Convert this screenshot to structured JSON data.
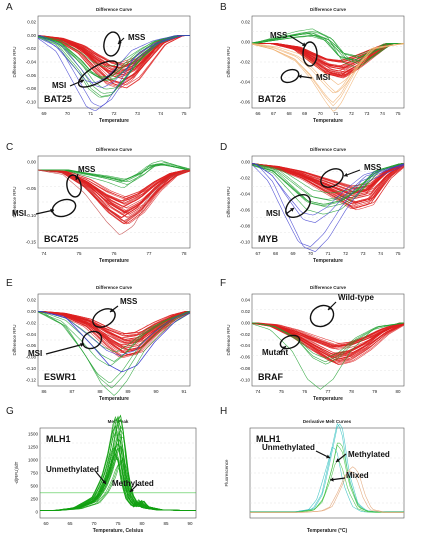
{
  "figure": {
    "panels": [
      {
        "letter": "A",
        "plot_title": "Difference Curve",
        "ylabel": "Difference RFU",
        "xlabel": "Temperature",
        "xticks": [
          "69",
          "70",
          "71",
          "72",
          "73",
          "74",
          "75"
        ],
        "yticks": [
          "0.02",
          "0.00",
          "-0.02",
          "-0.04",
          "-0.06",
          "-0.08",
          "-0.10"
        ],
        "annotations": [
          {
            "text": "MSS"
          },
          {
            "text": "MSI"
          }
        ],
        "marker": "BAT25"
      },
      {
        "letter": "B",
        "plot_title": "Difference Curve",
        "ylabel": "Difference RFU",
        "xlabel": "Temperature",
        "xticks": [
          "66",
          "67",
          "68",
          "69",
          "70",
          "71",
          "72",
          "73",
          "74",
          "75"
        ],
        "yticks": [
          "0.02",
          "0.00",
          "-0.02",
          "-0.04",
          "-0.06"
        ],
        "annotations": [
          {
            "text": "MSS"
          },
          {
            "text": "MSI"
          }
        ],
        "marker": "BAT26"
      },
      {
        "letter": "C",
        "plot_title": "Difference Curve",
        "ylabel": "Difference RFU",
        "xlabel": "Temperature",
        "xticks": [
          "74",
          "75",
          "76",
          "77",
          "78"
        ],
        "yticks": [
          "0.00",
          "-0.05",
          "-0.10",
          "-0.15"
        ],
        "annotations": [
          {
            "text": "MSS"
          },
          {
            "text": "MSI"
          }
        ],
        "marker": "BCAT25"
      },
      {
        "letter": "D",
        "plot_title": "Difference Curve",
        "ylabel": "Difference RFU",
        "xlabel": "Temperature",
        "xticks": [
          "67",
          "68",
          "69",
          "70",
          "71",
          "72",
          "73",
          "74",
          "75"
        ],
        "yticks": [
          "0.00",
          "-0.02",
          "-0.04",
          "-0.06",
          "-0.08",
          "-0.10"
        ],
        "annotations": [
          {
            "text": "MSS"
          },
          {
            "text": "MSI"
          }
        ],
        "marker": "MYB"
      },
      {
        "letter": "E",
        "plot_title": "Difference Curve",
        "ylabel": "Difference RFU",
        "xlabel": "Temperature",
        "xticks": [
          "86",
          "87",
          "88",
          "89",
          "90",
          "91"
        ],
        "yticks": [
          "0.02",
          "0.00",
          "-0.02",
          "-0.04",
          "-0.06",
          "-0.08",
          "-0.10",
          "-0.12"
        ],
        "annotations": [
          {
            "text": "MSS"
          },
          {
            "text": "MSI"
          }
        ],
        "marker": "ESWR1"
      },
      {
        "letter": "F",
        "plot_title": "Difference Curve",
        "ylabel": "Difference RFU",
        "xlabel": "Temperature",
        "xticks": [
          "74",
          "75",
          "76",
          "77",
          "78",
          "79",
          "80"
        ],
        "yticks": [
          "0.04",
          "0.02",
          "0.00",
          "-0.02",
          "-0.04",
          "-0.06",
          "-0.08",
          "-0.10"
        ],
        "annotations": [
          {
            "text": "Wild-type"
          },
          {
            "text": "Mutant"
          }
        ],
        "marker": "BRAF"
      },
      {
        "letter": "G",
        "plot_title": "Melt Peak",
        "ylabel": "-d(RFU)/dT",
        "xlabel": "Temperature, Celsius",
        "xticks": [
          "60",
          "65",
          "70",
          "75",
          "80",
          "85",
          "90"
        ],
        "yticks": [
          "1500",
          "1250",
          "1000",
          "750",
          "500",
          "250",
          "0"
        ],
        "annotations": [
          {
            "text": "Unmethylated"
          },
          {
            "text": "Methylated"
          }
        ],
        "marker": "MLH1"
      },
      {
        "letter": "H",
        "plot_title": "Derivative Melt Curves",
        "ylabel": "Fluorescence",
        "xlabel": "Temperature (°C)",
        "xticks": [],
        "yticks": [],
        "annotations": [
          {
            "text": "Unmethylated"
          },
          {
            "text": "Methylated"
          },
          {
            "text": "Mixed"
          }
        ],
        "marker": "MLH1"
      }
    ]
  },
  "chart_data": [
    {
      "panel": "A",
      "type": "line",
      "title": "Difference Curve",
      "xlabel": "Temperature",
      "ylabel": "Difference RFU",
      "xlim": [
        68.5,
        75.5
      ],
      "ylim": [
        -0.11,
        0.03
      ],
      "series": [
        {
          "color": "#dd2020",
          "count": 40,
          "x": [
            68.5,
            69.5,
            70.5,
            71.2,
            71.8,
            72.4,
            73.0,
            73.6,
            74.2,
            75.0
          ],
          "y": [
            0.0,
            -0.005,
            -0.02,
            -0.04,
            -0.055,
            -0.06,
            -0.05,
            -0.03,
            -0.01,
            0.0
          ]
        },
        {
          "color": "#20a030",
          "count": 10,
          "x": [
            68.5,
            69.5,
            70.5,
            71.0,
            71.5,
            72.0,
            72.6,
            73.2,
            74.0,
            75.0
          ],
          "y": [
            0.0,
            -0.01,
            -0.04,
            -0.06,
            -0.07,
            -0.068,
            -0.05,
            -0.03,
            -0.01,
            0.0
          ]
        },
        {
          "color": "#3c3cd0",
          "count": 4,
          "x": [
            68.5,
            69.5,
            70.3,
            70.9,
            71.3,
            71.8,
            72.4,
            73.0,
            74.0,
            75.0
          ],
          "y": [
            0.0,
            -0.02,
            -0.06,
            -0.09,
            -0.095,
            -0.085,
            -0.06,
            -0.03,
            -0.01,
            0.0
          ]
        }
      ]
    },
    {
      "panel": "B",
      "type": "line",
      "title": "Difference Curve",
      "xlabel": "Temperature",
      "ylabel": "Difference RFU",
      "xlim": [
        65.5,
        75.5
      ],
      "ylim": [
        -0.07,
        0.03
      ],
      "series": [
        {
          "color": "#dd2020",
          "count": 40,
          "x": [
            65.5,
            67.0,
            68.5,
            69.5,
            70.5,
            71.5,
            72.5,
            73.5,
            74.5,
            75.5
          ],
          "y": [
            0.0,
            0.0,
            -0.005,
            -0.015,
            -0.025,
            -0.028,
            -0.02,
            -0.01,
            0.0,
            0.0
          ]
        },
        {
          "color": "#20a030",
          "count": 10,
          "x": [
            65.5,
            67.0,
            68.5,
            69.5,
            70.5,
            71.5,
            72.5,
            73.5,
            74.5,
            75.5
          ],
          "y": [
            0.0,
            0.005,
            0.01,
            0.012,
            0.005,
            -0.015,
            -0.02,
            -0.01,
            0.0,
            0.0
          ]
        },
        {
          "color": "#f0b070",
          "count": 6,
          "x": [
            65.5,
            67.0,
            68.5,
            69.5,
            70.5,
            71.0,
            71.5,
            72.5,
            73.5,
            75.5
          ],
          "y": [
            0.0,
            -0.005,
            -0.015,
            -0.03,
            -0.05,
            -0.058,
            -0.05,
            -0.025,
            -0.005,
            0.0
          ]
        }
      ]
    },
    {
      "panel": "C",
      "type": "line",
      "title": "Difference Curve",
      "xlabel": "Temperature",
      "ylabel": "Difference RFU",
      "xlim": [
        73.2,
        78.8
      ],
      "ylim": [
        -0.17,
        0.03
      ],
      "series": [
        {
          "color": "#dd2020",
          "count": 40,
          "x": [
            73.2,
            74.2,
            75.0,
            75.8,
            76.4,
            77.0,
            77.6,
            78.2,
            78.8
          ],
          "y": [
            0.0,
            -0.005,
            -0.03,
            -0.07,
            -0.09,
            -0.07,
            -0.035,
            -0.01,
            0.0
          ]
        },
        {
          "color": "#20a030",
          "count": 8,
          "x": [
            73.2,
            74.2,
            75.0,
            75.8,
            76.4,
            77.0,
            77.4,
            77.8,
            78.8
          ],
          "y": [
            0.0,
            0.0,
            -0.01,
            -0.02,
            -0.03,
            -0.01,
            0.01,
            0.015,
            0.0
          ]
        },
        {
          "color": "#c04040",
          "count": 2,
          "x": [
            73.2,
            74.2,
            75.0,
            75.8,
            76.3,
            76.8,
            77.4,
            78.0,
            78.8
          ],
          "y": [
            0.0,
            -0.01,
            -0.05,
            -0.11,
            -0.14,
            -0.12,
            -0.06,
            -0.02,
            0.0
          ]
        }
      ]
    },
    {
      "panel": "D",
      "type": "line",
      "title": "Difference Curve",
      "xlabel": "Temperature",
      "ylabel": "Difference RFU",
      "xlim": [
        66.5,
        75.5
      ],
      "ylim": [
        -0.11,
        0.01
      ],
      "series": [
        {
          "color": "#dd2020",
          "count": 40,
          "x": [
            66.5,
            68.0,
            69.5,
            70.5,
            71.5,
            72.5,
            73.5,
            74.5,
            75.5
          ],
          "y": [
            0.0,
            -0.005,
            -0.015,
            -0.025,
            -0.035,
            -0.045,
            -0.04,
            -0.015,
            0.0
          ]
        },
        {
          "color": "#20a030",
          "count": 8,
          "x": [
            66.5,
            68.0,
            69.0,
            70.0,
            71.0,
            72.0,
            73.0,
            74.0,
            75.5
          ],
          "y": [
            0.0,
            -0.01,
            -0.03,
            -0.05,
            -0.055,
            -0.05,
            -0.035,
            -0.01,
            0.0
          ]
        },
        {
          "color": "#3c3cd0",
          "count": 4,
          "x": [
            66.5,
            67.5,
            68.5,
            69.3,
            70.0,
            70.8,
            71.8,
            73.0,
            75.5
          ],
          "y": [
            0.0,
            -0.02,
            -0.06,
            -0.09,
            -0.095,
            -0.08,
            -0.05,
            -0.02,
            0.0
          ]
        }
      ]
    },
    {
      "panel": "E",
      "type": "line",
      "title": "Difference Curve",
      "xlabel": "Temperature",
      "ylabel": "Difference RFU",
      "xlim": [
        85.5,
        91.5
      ],
      "ylim": [
        -0.13,
        0.03
      ],
      "series": [
        {
          "color": "#dd2020",
          "count": 40,
          "x": [
            85.5,
            86.5,
            87.5,
            88.3,
            88.9,
            89.5,
            90.2,
            90.9,
            91.5
          ],
          "y": [
            0.0,
            -0.005,
            -0.02,
            -0.045,
            -0.06,
            -0.055,
            -0.03,
            -0.01,
            0.0
          ]
        },
        {
          "color": "#20a030",
          "count": 6,
          "x": [
            85.5,
            86.5,
            87.3,
            87.9,
            88.4,
            88.9,
            89.6,
            90.5,
            91.5
          ],
          "y": [
            0.0,
            -0.02,
            -0.06,
            -0.095,
            -0.11,
            -0.09,
            -0.05,
            -0.02,
            0.0
          ]
        },
        {
          "color": "#3c3cd0",
          "count": 3,
          "x": [
            85.5,
            86.5,
            87.5,
            88.2,
            88.7,
            89.3,
            90.0,
            90.8,
            91.5
          ],
          "y": [
            0.0,
            -0.01,
            -0.05,
            -0.08,
            -0.09,
            -0.08,
            -0.045,
            -0.015,
            0.0
          ]
        }
      ]
    },
    {
      "panel": "F",
      "type": "line",
      "title": "Difference Curve",
      "xlabel": "Temperature",
      "ylabel": "Difference RFU",
      "xlim": [
        73.5,
        80.5
      ],
      "ylim": [
        -0.11,
        0.05
      ],
      "series": [
        {
          "color": "#dd2020",
          "count": 40,
          "x": [
            73.5,
            74.5,
            75.5,
            76.5,
            77.3,
            78.0,
            78.8,
            79.6,
            80.5
          ],
          "y": [
            0.0,
            -0.005,
            -0.02,
            -0.04,
            -0.055,
            -0.05,
            -0.035,
            -0.015,
            0.0
          ]
        },
        {
          "color": "#20a030",
          "count": 4,
          "x": [
            73.5,
            74.5,
            75.5,
            76.2,
            76.8,
            77.4,
            78.2,
            79.2,
            80.5
          ],
          "y": [
            0.0,
            -0.01,
            -0.04,
            -0.08,
            -0.095,
            -0.08,
            -0.04,
            -0.01,
            0.0
          ]
        }
      ]
    },
    {
      "panel": "G",
      "type": "line",
      "title": "Melt Peak",
      "xlabel": "Temperature, Celsius",
      "ylabel": "-d(RFU)/dT",
      "xlim": [
        58,
        92
      ],
      "ylim": [
        -150,
        1600
      ],
      "series": [
        {
          "color": "#10a010",
          "count": 30,
          "x": [
            58,
            62,
            66,
            70,
            72,
            73.5,
            74.5,
            75.2,
            75.8,
            76.5,
            77.5,
            79,
            80,
            81,
            84,
            88,
            92
          ],
          "y": [
            0,
            0,
            40,
            200,
            500,
            900,
            1300,
            1420,
            1200,
            700,
            280,
            80,
            160,
            60,
            10,
            0,
            0
          ]
        },
        {
          "color": "#30c030",
          "count": 1,
          "x": [
            58,
            92
          ],
          "y": [
            340,
            340
          ]
        }
      ]
    },
    {
      "panel": "H",
      "type": "line",
      "title": "Derivative Melt Curves",
      "xlabel": "Temperature (°C)",
      "ylabel": "Fluorescence",
      "xlim": [
        60,
        95
      ],
      "ylim": [
        -0.05,
        1.0
      ],
      "series": [
        {
          "color": "#30c0c0",
          "count": 3,
          "x": [
            60,
            70,
            74,
            76,
            78,
            79.5,
            80.5,
            82,
            84,
            86,
            88,
            95
          ],
          "y": [
            0.02,
            0.02,
            0.05,
            0.2,
            0.6,
            0.92,
            0.85,
            0.4,
            0.1,
            0.03,
            0.02,
            0.02
          ]
        },
        {
          "color": "#40c040",
          "count": 3,
          "x": [
            60,
            70,
            74,
            76,
            78,
            79.2,
            80.3,
            82,
            84,
            86,
            88,
            95
          ],
          "y": [
            0.02,
            0.02,
            0.05,
            0.18,
            0.55,
            0.85,
            0.78,
            0.35,
            0.08,
            0.03,
            0.02,
            0.02
          ]
        },
        {
          "color": "#e0a070",
          "count": 2,
          "x": [
            60,
            72,
            76,
            78,
            80,
            81.5,
            82.8,
            84,
            85.5,
            87,
            90,
            95
          ],
          "y": [
            0.02,
            0.02,
            0.04,
            0.1,
            0.35,
            0.58,
            0.65,
            0.55,
            0.25,
            0.06,
            0.02,
            0.02
          ]
        }
      ]
    }
  ]
}
